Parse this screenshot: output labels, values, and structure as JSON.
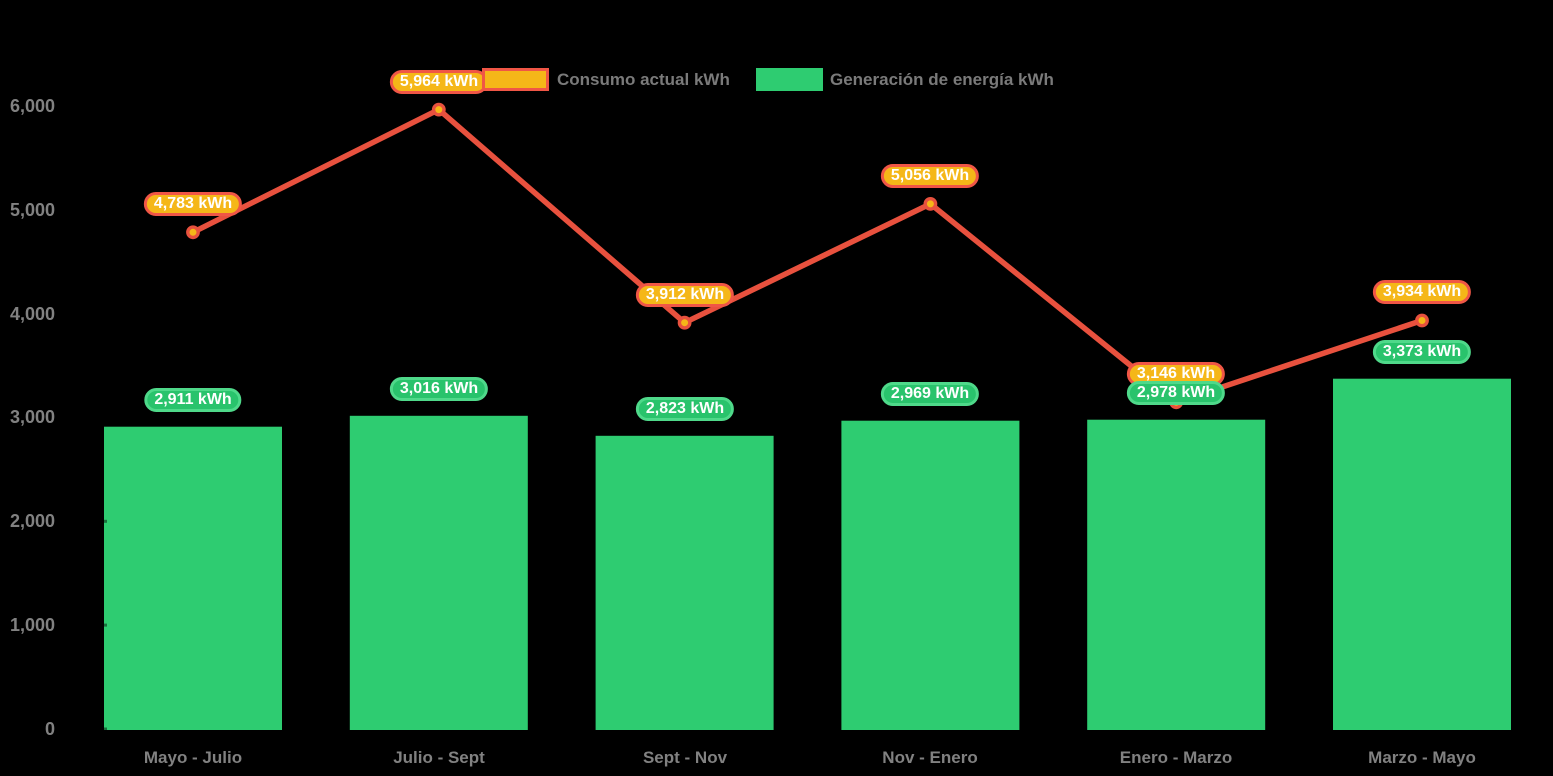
{
  "colors": {
    "background": "#000000",
    "bar": "#2ecc71",
    "line": "#e8513e",
    "marker_fill": "#f5b718",
    "badge_consumo_fill": "#f5b718",
    "badge_consumo_border": "#f05646",
    "badge_generacion_fill": "#29c36c",
    "badge_generacion_border": "#4fd98a",
    "axis_text": "#818181",
    "legend_text": "#7a7a7a",
    "badge_text": "#ffffff"
  },
  "chart_data": {
    "type": "combo",
    "background": "black",
    "grid": false,
    "legend_position": "top",
    "categories": [
      "Mayo - Julio",
      "Julio - Sept",
      "Sept - Nov",
      "Nov - Enero",
      "Enero - Marzo",
      "Marzo - Mayo"
    ],
    "y_axis": {
      "ticks": [
        "0",
        "1,000",
        "2,000",
        "3,000",
        "4,000",
        "5,000",
        "6,000"
      ],
      "range": [
        0,
        6000
      ]
    },
    "series": [
      {
        "name": "Consumo actual kWh",
        "type": "line",
        "values": [
          4783,
          5964,
          3912,
          5056,
          3146,
          3934
        ],
        "labels": [
          "4,783 kWh",
          "5,964 kWh",
          "3,912 kWh",
          "5,056 kWh",
          "3,146 kWh",
          "3,934 kWh"
        ]
      },
      {
        "name": "Generación de energía kWh",
        "type": "bar",
        "values": [
          2911,
          3016,
          2823,
          2969,
          2978,
          3373
        ],
        "labels": [
          "2,911 kWh",
          "3,016 kWh",
          "2,823 kWh",
          "2,969 kWh",
          "2,978 kWh",
          "3,373 kWh"
        ]
      }
    ]
  }
}
